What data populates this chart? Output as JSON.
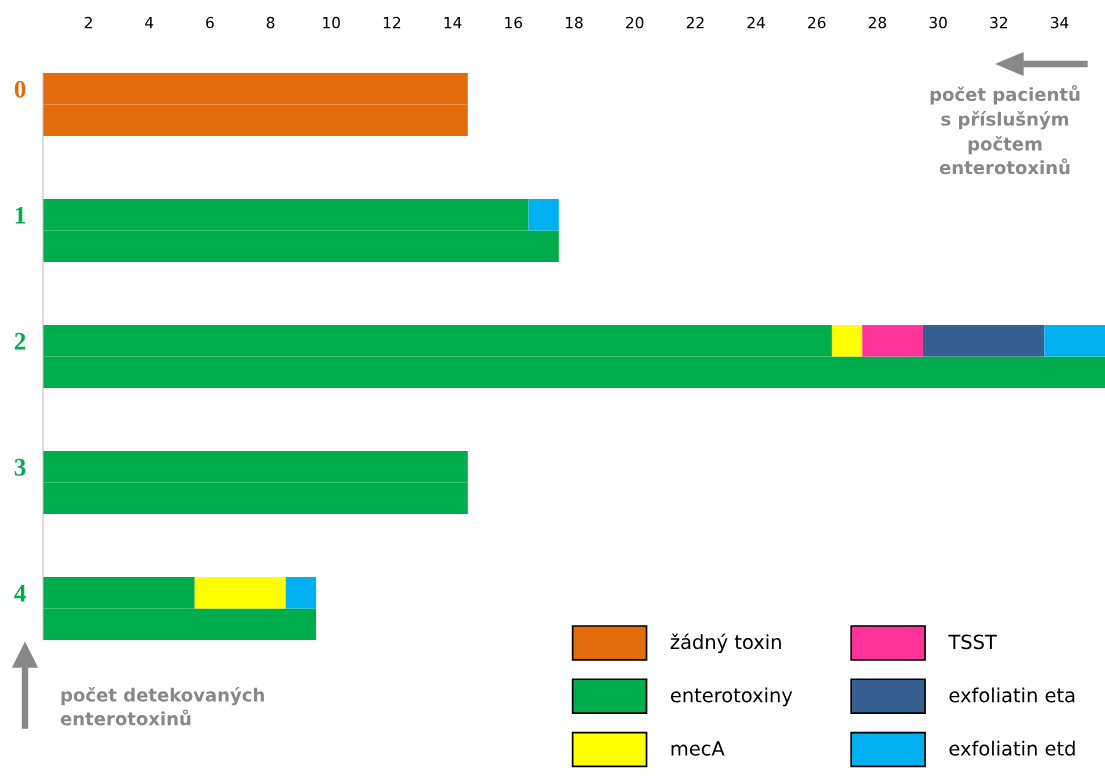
{
  "chart_data": {
    "type": "bar",
    "orientation": "horizontal",
    "stacked": true,
    "categories": [
      "0",
      null,
      null,
      null,
      "1",
      null,
      null,
      null,
      "2",
      null,
      null,
      null,
      "3",
      null,
      null,
      null,
      "4",
      null
    ],
    "series": [
      {
        "name": "žádný toxin",
        "color": "#e36c0a",
        "values": [
          14.5,
          14.5,
          null,
          null,
          null,
          null,
          null,
          null,
          null,
          null,
          null,
          null,
          null,
          null,
          null,
          null,
          null,
          null
        ]
      },
      {
        "name": "enterotoxiny",
        "color": "#00ad4d",
        "values": [
          null,
          null,
          null,
          null,
          16.5,
          17.5,
          null,
          null,
          26.5,
          35.5,
          null,
          null,
          14.5,
          14.5,
          null,
          null,
          5.5,
          9.5
        ]
      },
      {
        "name": "mecA",
        "color": "#ffff00",
        "values": [
          null,
          null,
          null,
          null,
          null,
          null,
          null,
          null,
          1,
          null,
          null,
          null,
          null,
          null,
          null,
          null,
          3,
          null
        ]
      },
      {
        "name": "TSST",
        "color": "#ff3399",
        "values": [
          null,
          null,
          null,
          null,
          null,
          null,
          null,
          null,
          2,
          null,
          null,
          null,
          null,
          null,
          null,
          null,
          null,
          null
        ]
      },
      {
        "name": "exfoliatin eta",
        "color": "#35608f",
        "values": [
          null,
          null,
          null,
          null,
          null,
          null,
          null,
          null,
          4,
          null,
          null,
          null,
          null,
          null,
          null,
          null,
          null,
          null
        ]
      },
      {
        "name": "exfoliatin etd",
        "color": "#00b0f0",
        "values": [
          null,
          null,
          null,
          null,
          1,
          null,
          null,
          null,
          2,
          null,
          null,
          null,
          null,
          null,
          null,
          null,
          1,
          null
        ]
      }
    ],
    "xlim": [
      0.5,
      35.5
    ],
    "xticks": [
      2,
      4,
      6,
      8,
      10,
      12,
      14,
      16,
      18,
      20,
      22,
      24,
      26,
      28,
      30,
      32,
      34
    ],
    "grid": false,
    "legend": "bottom right",
    "annotations": [
      "počet pacientů\ns příslušným\npočtem\nenterotoxinů",
      "počet detekovaných\nenterotoxinů"
    ]
  }
}
